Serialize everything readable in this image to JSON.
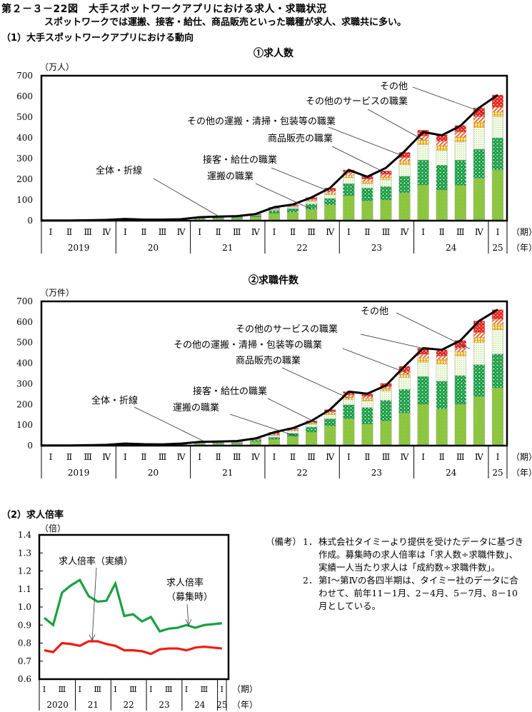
{
  "figure": {
    "title": "第２－３－22図　大手スポットワークアプリにおける求人・求職状況",
    "subtitle": "スポットワークでは運搬、接客・給仕、商品販売といった職種が求人、求職共に多い。",
    "section1": "（1）大手スポットワークアプリにおける動向",
    "section2": "（2）求人倍率"
  },
  "colors": {
    "transport": "#8cc63f",
    "service_customer": "#0f9a3c",
    "sales": "#d9efc0",
    "other_transport": "#f5c000",
    "other_service": "#f26b2e",
    "other": "#e8211b",
    "total_line": "#000000",
    "ratio_posting": "#19a040",
    "ratio_actual": "#ee1c14"
  },
  "chart_data": [
    {
      "type": "bar",
      "stacked": true,
      "title": "①求人数",
      "ylabel": "（万人）",
      "ylim": [
        0,
        700
      ],
      "yticks": [
        0,
        100,
        200,
        300,
        400,
        500,
        600,
        700
      ],
      "period_label": "（期）",
      "year_label": "（年）",
      "quarters": [
        "Ⅰ",
        "Ⅱ",
        "Ⅲ",
        "Ⅳ",
        "Ⅰ",
        "Ⅱ",
        "Ⅲ",
        "Ⅳ",
        "Ⅰ",
        "Ⅱ",
        "Ⅲ",
        "Ⅳ",
        "Ⅰ",
        "Ⅱ",
        "Ⅲ",
        "Ⅳ",
        "Ⅰ",
        "Ⅱ",
        "Ⅲ",
        "Ⅳ",
        "Ⅰ",
        "Ⅱ",
        "Ⅲ",
        "Ⅳ",
        "Ⅰ"
      ],
      "years": [
        {
          "label": "2019",
          "n": 4
        },
        {
          "label": "20",
          "n": 4
        },
        {
          "label": "21",
          "n": 4
        },
        {
          "label": "22",
          "n": 4
        },
        {
          "label": "23",
          "n": 4
        },
        {
          "label": "24",
          "n": 4
        },
        {
          "label": "25",
          "n": 1
        }
      ],
      "series": [
        {
          "name": "運搬の職業",
          "key": "transport",
          "values": [
            0,
            0,
            0,
            1,
            2,
            1,
            1,
            3,
            8,
            10,
            12,
            18,
            35,
            40,
            55,
            75,
            120,
            95,
            100,
            135,
            172,
            148,
            170,
            205,
            245
          ]
        },
        {
          "name": "接客・給仕の職業",
          "key": "service_customer",
          "values": [
            0,
            0,
            0,
            1,
            2,
            1,
            1,
            2,
            3,
            4,
            4,
            6,
            14,
            18,
            26,
            32,
            58,
            62,
            65,
            80,
            120,
            120,
            122,
            140,
            155
          ]
        },
        {
          "name": "商品販売の職業",
          "key": "sales",
          "values": [
            0,
            0,
            0,
            0,
            1,
            1,
            1,
            1,
            2,
            2,
            2,
            3,
            5,
            7,
            12,
            18,
            30,
            22,
            32,
            55,
            75,
            72,
            88,
            105,
            103
          ]
        },
        {
          "name": "その他の運搬・清掃・包装等の職業",
          "key": "other_transport",
          "values": [
            0,
            0,
            0,
            0,
            0,
            0,
            0,
            0,
            1,
            1,
            1,
            1,
            2,
            3,
            5,
            8,
            12,
            10,
            14,
            17,
            22,
            22,
            24,
            25,
            21
          ]
        },
        {
          "name": "その他のサービスの職業",
          "key": "other_service",
          "values": [
            0,
            0,
            0,
            0,
            1,
            0,
            0,
            0,
            1,
            1,
            1,
            1,
            3,
            4,
            5,
            9,
            11,
            12,
            12,
            18,
            20,
            22,
            24,
            28,
            24
          ]
        },
        {
          "name": "その他",
          "key": "other",
          "values": [
            1,
            1,
            2,
            2,
            2,
            2,
            2,
            1,
            2,
            2,
            2,
            3,
            6,
            6,
            9,
            16,
            14,
            17,
            17,
            25,
            28,
            30,
            32,
            42,
            59
          ]
        }
      ],
      "line": {
        "name": "全体・折線",
        "values": [
          1,
          1,
          2,
          4,
          8,
          5,
          5,
          7,
          17,
          20,
          22,
          32,
          65,
          78,
          112,
          158,
          245,
          212,
          255,
          335,
          428,
          412,
          458,
          545,
          607
        ]
      },
      "annotations": [
        "その他",
        "その他のサービスの職業",
        "その他の運搬・清掃・包装等の職業",
        "商品販売の職業",
        "接客・給仕の職業",
        "運搬の職業",
        "全体・折線"
      ]
    },
    {
      "type": "bar",
      "stacked": true,
      "title": "②求職件数",
      "ylabel": "（万件）",
      "ylim": [
        0,
        700
      ],
      "yticks": [
        0,
        100,
        200,
        300,
        400,
        500,
        600,
        700
      ],
      "period_label": "（期）",
      "year_label": "（年）",
      "quarters": [
        "Ⅰ",
        "Ⅱ",
        "Ⅲ",
        "Ⅳ",
        "Ⅰ",
        "Ⅱ",
        "Ⅲ",
        "Ⅳ",
        "Ⅰ",
        "Ⅱ",
        "Ⅲ",
        "Ⅳ",
        "Ⅰ",
        "Ⅱ",
        "Ⅲ",
        "Ⅳ",
        "Ⅰ",
        "Ⅱ",
        "Ⅲ",
        "Ⅳ",
        "Ⅰ",
        "Ⅱ",
        "Ⅲ",
        "Ⅳ",
        "Ⅰ"
      ],
      "years": [
        {
          "label": "2019",
          "n": 4
        },
        {
          "label": "20",
          "n": 4
        },
        {
          "label": "21",
          "n": 4
        },
        {
          "label": "22",
          "n": 4
        },
        {
          "label": "23",
          "n": 4
        },
        {
          "label": "24",
          "n": 4
        },
        {
          "label": "25",
          "n": 1
        }
      ],
      "series": [
        {
          "name": "運搬の職業",
          "key": "transport",
          "values": [
            0,
            0,
            0,
            1,
            3,
            2,
            2,
            4,
            9,
            10,
            11,
            20,
            30,
            45,
            65,
            95,
            130,
            105,
            120,
            158,
            200,
            178,
            200,
            238,
            280
          ]
        },
        {
          "name": "接客・給仕の職業",
          "key": "service_customer",
          "values": [
            0,
            0,
            0,
            1,
            3,
            2,
            1,
            2,
            3,
            4,
            4,
            7,
            10,
            15,
            25,
            35,
            68,
            80,
            100,
            115,
            135,
            135,
            140,
            155,
            165
          ]
        },
        {
          "name": "商品販売の職業",
          "key": "sales",
          "values": [
            0,
            0,
            0,
            0,
            1,
            1,
            1,
            1,
            2,
            2,
            3,
            3,
            8,
            10,
            14,
            20,
            26,
            32,
            45,
            58,
            70,
            85,
            95,
            108,
            118
          ]
        },
        {
          "name": "その他の運搬・清掃・包装等の職業",
          "key": "other_transport",
          "values": [
            0,
            0,
            0,
            0,
            1,
            1,
            1,
            1,
            1,
            1,
            1,
            1,
            4,
            5,
            6,
            8,
            12,
            12,
            12,
            15,
            20,
            20,
            20,
            24,
            25
          ]
        },
        {
          "name": "その他のサービスの職業",
          "key": "other_service",
          "values": [
            0,
            0,
            0,
            0,
            1,
            0,
            0,
            1,
            1,
            1,
            1,
            1,
            4,
            4,
            4,
            6,
            10,
            10,
            10,
            14,
            18,
            17,
            18,
            24,
            25
          ]
        },
        {
          "name": "その他",
          "key": "other",
          "values": [
            1,
            1,
            2,
            2,
            1,
            1,
            1,
            1,
            2,
            2,
            2,
            3,
            9,
            6,
            6,
            11,
            16,
            13,
            15,
            25,
            30,
            30,
            37,
            56,
            47
          ]
        }
      ],
      "line": {
        "name": "全体・折線",
        "values": [
          1,
          1,
          2,
          4,
          10,
          7,
          6,
          10,
          18,
          20,
          22,
          35,
          65,
          85,
          120,
          175,
          262,
          252,
          292,
          385,
          473,
          465,
          510,
          605,
          660
        ]
      },
      "annotations": [
        "その他",
        "その他のサービスの職業",
        "その他の運搬・清掃・包装等の職業",
        "商品販売の職業",
        "接客・給仕の職業",
        "運搬の職業",
        "全体・折線"
      ]
    },
    {
      "type": "line",
      "title": "（2）求人倍率",
      "ylabel": "（倍）",
      "ylim": [
        0.6,
        1.4
      ],
      "yticks": [
        "0.6",
        "0.7",
        "0.8",
        "0.9",
        "1.0",
        "1.1",
        "1.2",
        "1.3",
        "1.4"
      ],
      "period_label": "（期）",
      "year_label": "（年）",
      "quarters": [
        "Ⅰ",
        "",
        "Ⅲ",
        "",
        "Ⅰ",
        "",
        "Ⅲ",
        "",
        "Ⅰ",
        "",
        "Ⅲ",
        "",
        "Ⅰ",
        "",
        "Ⅲ",
        "",
        "Ⅰ",
        "",
        "Ⅲ",
        "",
        "Ⅰ"
      ],
      "years": [
        {
          "label": "2020",
          "n": 4
        },
        {
          "label": "21",
          "n": 4
        },
        {
          "label": "22",
          "n": 4
        },
        {
          "label": "23",
          "n": 4
        },
        {
          "label": "24",
          "n": 4
        },
        {
          "label": "25",
          "n": 1
        }
      ],
      "series": [
        {
          "name": "求人倍率（募集時）",
          "key": "ratio_posting",
          "values": [
            0.94,
            0.9,
            1.08,
            1.12,
            1.15,
            1.06,
            1.03,
            1.035,
            1.13,
            0.95,
            0.96,
            0.92,
            0.945,
            0.865,
            0.88,
            0.885,
            0.9,
            0.885,
            0.9,
            0.905,
            0.91
          ]
        },
        {
          "name": "求人倍率（実績）",
          "key": "ratio_actual",
          "values": [
            0.76,
            0.75,
            0.8,
            0.795,
            0.785,
            0.81,
            0.81,
            0.795,
            0.785,
            0.76,
            0.76,
            0.755,
            0.74,
            0.765,
            0.77,
            0.77,
            0.76,
            0.775,
            0.78,
            0.775,
            0.77
          ]
        }
      ],
      "annotations": [
        "求人倍率（実績）",
        "求人倍率",
        "（募集時）"
      ]
    }
  ],
  "notes": {
    "label": "（備考）",
    "items": [
      {
        "num": "1．",
        "text": "株式会社タイミーより提供を受けたデータに基づき作成。募集時の求人倍率は「求人数÷求職件数」、実績一人当たり求人は「成約数÷求職件数」。"
      },
      {
        "num": "2．",
        "text": "第Ⅰ～第Ⅳの各四半期は、タイミー社のデータに合わせて、前年11－1月、2－4月、5－7月、8－10月としている。"
      }
    ]
  }
}
